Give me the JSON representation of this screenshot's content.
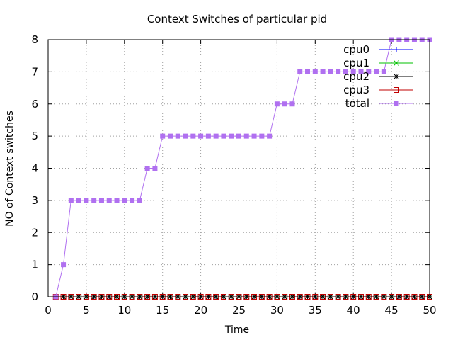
{
  "chart_data": {
    "type": "line",
    "title": "Context Switches of particular pid",
    "xlabel": "Time",
    "ylabel": "NO of Context switches",
    "xlim": [
      0,
      50
    ],
    "ylim": [
      0,
      8
    ],
    "xticks": [
      0,
      5,
      10,
      15,
      20,
      25,
      30,
      35,
      40,
      45,
      50
    ],
    "yticks": [
      0,
      1,
      2,
      3,
      4,
      5,
      6,
      7,
      8
    ],
    "grid": true,
    "legend_position": "top-right",
    "x": [
      1,
      2,
      3,
      4,
      5,
      6,
      7,
      8,
      9,
      10,
      11,
      12,
      13,
      14,
      15,
      16,
      17,
      18,
      19,
      20,
      21,
      22,
      23,
      24,
      25,
      26,
      27,
      28,
      29,
      30,
      31,
      32,
      33,
      34,
      35,
      36,
      37,
      38,
      39,
      40,
      41,
      42,
      43,
      44,
      45,
      46,
      47,
      48,
      49,
      50
    ],
    "series": [
      {
        "name": "cpu0",
        "color": "#0000ff",
        "marker": "plus",
        "values": [
          0,
          0,
          0,
          0,
          0,
          0,
          0,
          0,
          0,
          0,
          0,
          0,
          0,
          0,
          0,
          0,
          0,
          0,
          0,
          0,
          0,
          0,
          0,
          0,
          0,
          0,
          0,
          0,
          0,
          0,
          0,
          0,
          0,
          0,
          0,
          0,
          0,
          0,
          0,
          0,
          0,
          0,
          0,
          0,
          0,
          0,
          0,
          0,
          0,
          0
        ]
      },
      {
        "name": "cpu1",
        "color": "#00c000",
        "marker": "cross",
        "values": [
          0,
          0,
          0,
          0,
          0,
          0,
          0,
          0,
          0,
          0,
          0,
          0,
          0,
          0,
          0,
          0,
          0,
          0,
          0,
          0,
          0,
          0,
          0,
          0,
          0,
          0,
          0,
          0,
          0,
          0,
          0,
          0,
          0,
          0,
          0,
          0,
          0,
          0,
          0,
          0,
          0,
          0,
          0,
          0,
          0,
          0,
          0,
          0,
          0,
          0
        ]
      },
      {
        "name": "cpu2",
        "color": "#000000",
        "marker": "star",
        "values": [
          0,
          0,
          0,
          0,
          0,
          0,
          0,
          0,
          0,
          0,
          0,
          0,
          0,
          0,
          0,
          0,
          0,
          0,
          0,
          0,
          0,
          0,
          0,
          0,
          0,
          0,
          0,
          0,
          0,
          0,
          0,
          0,
          0,
          0,
          0,
          0,
          0,
          0,
          0,
          0,
          0,
          0,
          0,
          0,
          0,
          0,
          0,
          0,
          0,
          0
        ]
      },
      {
        "name": "cpu3",
        "color": "#c00000",
        "marker": "open-square",
        "values": [
          0,
          0,
          0,
          0,
          0,
          0,
          0,
          0,
          0,
          0,
          0,
          0,
          0,
          0,
          0,
          0,
          0,
          0,
          0,
          0,
          0,
          0,
          0,
          0,
          0,
          0,
          0,
          0,
          0,
          0,
          0,
          0,
          0,
          0,
          0,
          0,
          0,
          0,
          0,
          0,
          0,
          0,
          0,
          0,
          0,
          0,
          0,
          0,
          0,
          0
        ]
      },
      {
        "name": "total",
        "color": "#b070f0",
        "marker": "filled-square",
        "values": [
          0,
          1,
          3,
          3,
          3,
          3,
          3,
          3,
          3,
          3,
          3,
          3,
          4,
          4,
          5,
          5,
          5,
          5,
          5,
          5,
          5,
          5,
          5,
          5,
          5,
          5,
          5,
          5,
          5,
          6,
          6,
          6,
          7,
          7,
          7,
          7,
          7,
          7,
          7,
          7,
          7,
          7,
          7,
          7,
          8,
          8,
          8,
          8,
          8,
          8
        ]
      }
    ]
  }
}
